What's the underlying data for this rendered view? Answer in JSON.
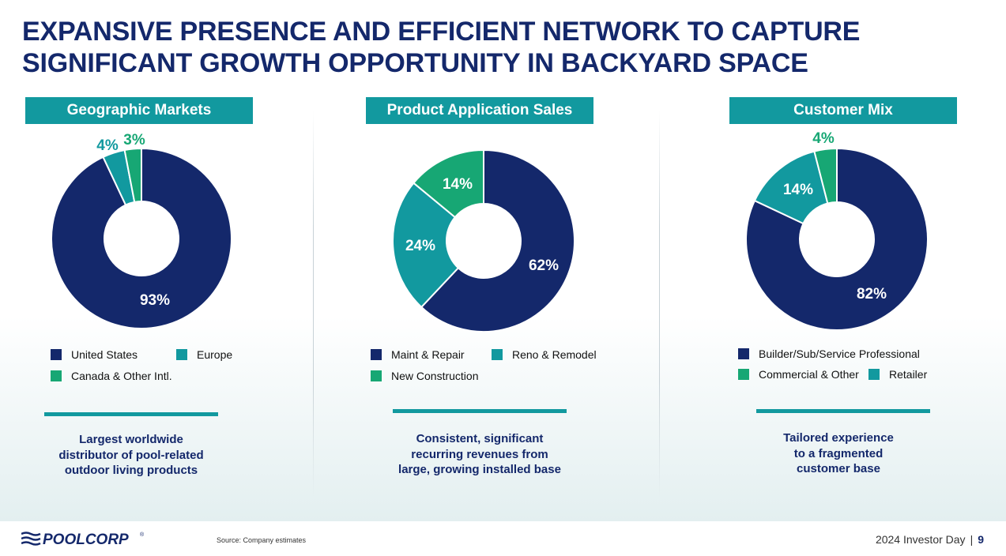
{
  "title": {
    "line1": "EXPANSIVE PRESENCE AND EFFICIENT NETWORK TO CAPTURE",
    "line2": "SIGNIFICANT GROWTH OPPORTUNITY IN BACKYARD SPACE"
  },
  "colors": {
    "navy": "#14286b",
    "teal": "#12999f",
    "green": "#17a774"
  },
  "chart_data": [
    {
      "type": "pie",
      "title": "Geographic Markets",
      "categories": [
        "United States",
        "Europe",
        "Canada & Other Intl."
      ],
      "values": [
        93,
        4,
        3
      ],
      "labels": [
        "93%",
        "4%",
        "3%"
      ],
      "legend": [
        "United States",
        "Europe",
        "Canada & Other Intl."
      ]
    },
    {
      "type": "pie",
      "title": "Product Application Sales",
      "categories": [
        "Maint & Repair",
        "Reno & Remodel",
        "New Construction"
      ],
      "values": [
        62,
        24,
        14
      ],
      "labels": [
        "62%",
        "24%",
        "14%"
      ],
      "legend": [
        "Maint & Repair",
        "Reno & Remodel",
        "New Construction"
      ]
    },
    {
      "type": "pie",
      "title": "Customer Mix",
      "categories": [
        "Builder/Sub/Service Professional",
        "Retailer",
        "Commercial & Other"
      ],
      "values": [
        82,
        14,
        4
      ],
      "labels": [
        "82%",
        "14%",
        "4%"
      ],
      "legend": [
        "Builder/Sub/Service Professional",
        "Commercial & Other",
        "Retailer"
      ]
    }
  ],
  "taglines": [
    [
      "Largest worldwide",
      "distributor of pool-related",
      "outdoor living products"
    ],
    [
      "Consistent, significant",
      "recurring revenues from",
      "large, growing installed base"
    ],
    [
      "Tailored experience",
      "to a fragmented",
      "customer base"
    ]
  ],
  "footer": {
    "logo": "POOLCORP",
    "logo_mark": "®",
    "source": "Source:  Company estimates",
    "event": "2024 Investor Day",
    "separator": "|",
    "page": "9"
  }
}
